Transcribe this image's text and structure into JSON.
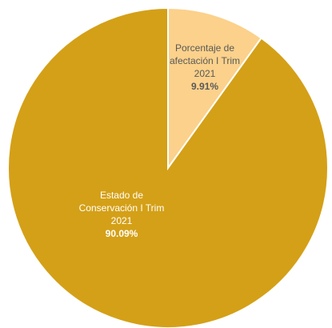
{
  "chart_data": {
    "type": "pie",
    "slices": [
      {
        "label_lines": [
          "Porcentaje de",
          "afectación I Trim",
          "2021"
        ],
        "value": 9.91,
        "value_label": "9.91%",
        "color": "#fbd18b"
      },
      {
        "label_lines": [
          "Estado de",
          "Conservación I Trim",
          "2021"
        ],
        "value": 90.09,
        "value_label": "90.09%",
        "color": "#d4a017"
      }
    ]
  }
}
